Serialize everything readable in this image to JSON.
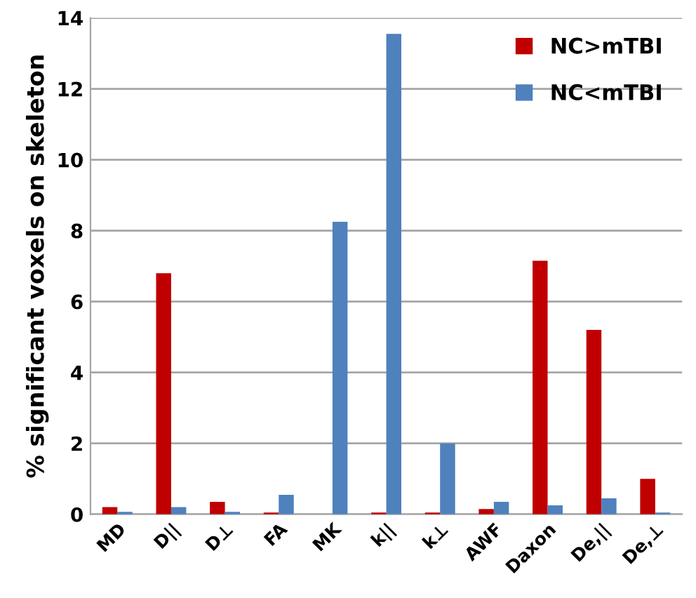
{
  "chart_data": {
    "type": "bar",
    "ylabel": "% significant voxels on skeleton",
    "categories": [
      "MD",
      "D||",
      "D⊥",
      "FA",
      "MK",
      "k||",
      "k⊥",
      "AWF",
      "Daxon",
      "De,||",
      "De,⊥"
    ],
    "series": [
      {
        "name": "NC>mTBI",
        "color": "#c00000",
        "values": [
          0.2,
          6.8,
          0.35,
          0.05,
          0,
          0.05,
          0.05,
          0.15,
          7.15,
          5.2,
          1.0
        ]
      },
      {
        "name": "NC<mTBI",
        "color": "#4f81bd",
        "values": [
          0.07,
          0.2,
          0.07,
          0.55,
          8.25,
          13.55,
          2.0,
          0.35,
          0.25,
          0.45,
          0.05
        ]
      }
    ],
    "ylim": [
      0,
      14
    ],
    "yticks": [
      0,
      2,
      4,
      6,
      8,
      10,
      12,
      14
    ],
    "grid": "y",
    "legend": "top right"
  }
}
